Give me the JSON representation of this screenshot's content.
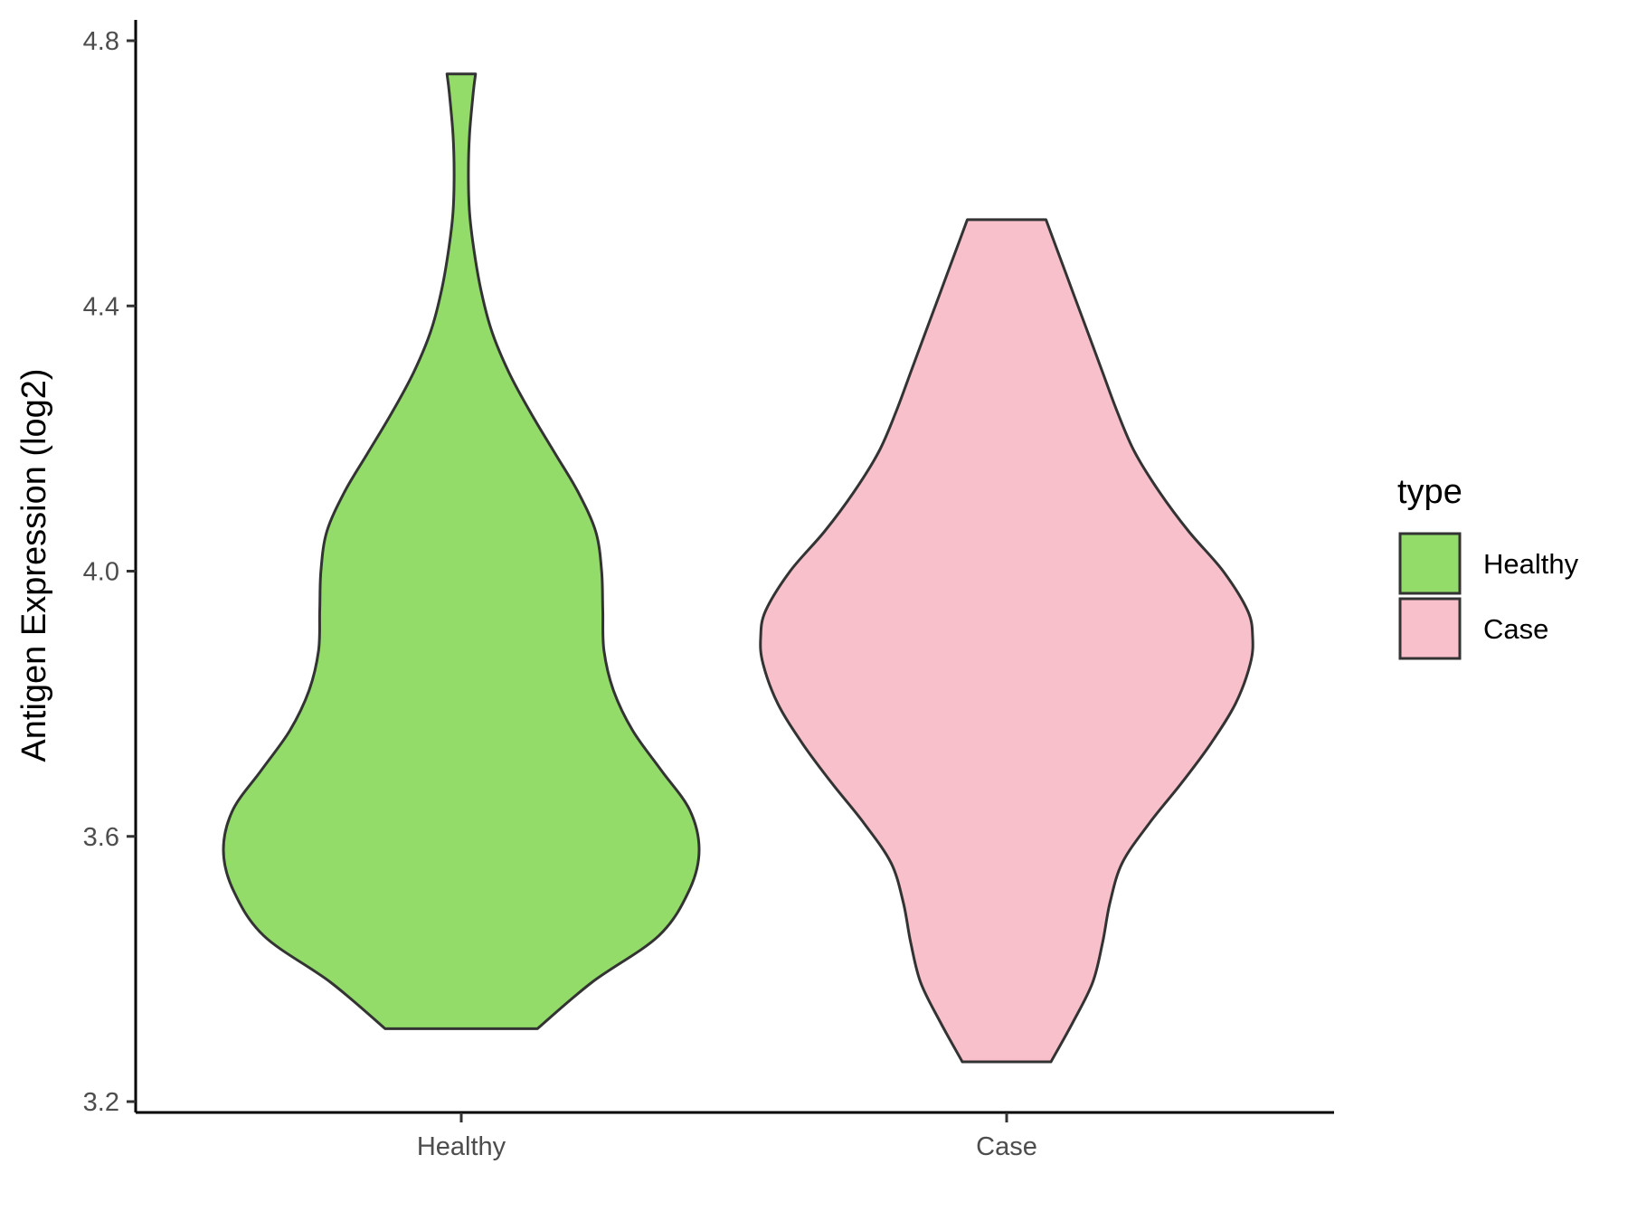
{
  "chart_data": {
    "type": "violin",
    "title": "",
    "xlabel": "",
    "ylabel": "Antigen Expression (log2)",
    "ylim": [
      3.2,
      4.8
    ],
    "yticks": [
      "3.2",
      "3.6",
      "4.0",
      "4.4",
      "4.8"
    ],
    "categories": [
      "Healthy",
      "Case"
    ],
    "legend": {
      "title": "type",
      "position": "right"
    },
    "grid": false,
    "series": [
      {
        "name": "Healthy",
        "color": "#93dc6a",
        "min": 3.31,
        "max": 4.75,
        "density": [
          [
            3.31,
            0.32
          ],
          [
            3.38,
            0.55
          ],
          [
            3.45,
            0.83
          ],
          [
            3.52,
            0.96
          ],
          [
            3.58,
            1.0
          ],
          [
            3.64,
            0.96
          ],
          [
            3.7,
            0.84
          ],
          [
            3.76,
            0.72
          ],
          [
            3.82,
            0.64
          ],
          [
            3.88,
            0.6
          ],
          [
            3.94,
            0.595
          ],
          [
            4.0,
            0.59
          ],
          [
            4.06,
            0.565
          ],
          [
            4.12,
            0.49
          ],
          [
            4.18,
            0.39
          ],
          [
            4.24,
            0.29
          ],
          [
            4.3,
            0.2
          ],
          [
            4.36,
            0.13
          ],
          [
            4.42,
            0.085
          ],
          [
            4.48,
            0.055
          ],
          [
            4.54,
            0.035
          ],
          [
            4.6,
            0.03
          ],
          [
            4.66,
            0.035
          ],
          [
            4.72,
            0.05
          ],
          [
            4.75,
            0.06
          ]
        ]
      },
      {
        "name": "Case",
        "color": "#f8c0cb",
        "min": 3.26,
        "max": 4.53,
        "density": [
          [
            3.26,
            0.18
          ],
          [
            3.32,
            0.27
          ],
          [
            3.38,
            0.35
          ],
          [
            3.44,
            0.39
          ],
          [
            3.5,
            0.42
          ],
          [
            3.56,
            0.47
          ],
          [
            3.62,
            0.58
          ],
          [
            3.68,
            0.71
          ],
          [
            3.74,
            0.83
          ],
          [
            3.8,
            0.93
          ],
          [
            3.86,
            0.99
          ],
          [
            3.9,
            1.0
          ],
          [
            3.94,
            0.98
          ],
          [
            4.0,
            0.88
          ],
          [
            4.06,
            0.74
          ],
          [
            4.12,
            0.62
          ],
          [
            4.18,
            0.52
          ],
          [
            4.24,
            0.45
          ],
          [
            4.3,
            0.39
          ],
          [
            4.36,
            0.33
          ],
          [
            4.42,
            0.27
          ],
          [
            4.48,
            0.21
          ],
          [
            4.53,
            0.16
          ]
        ]
      }
    ]
  }
}
